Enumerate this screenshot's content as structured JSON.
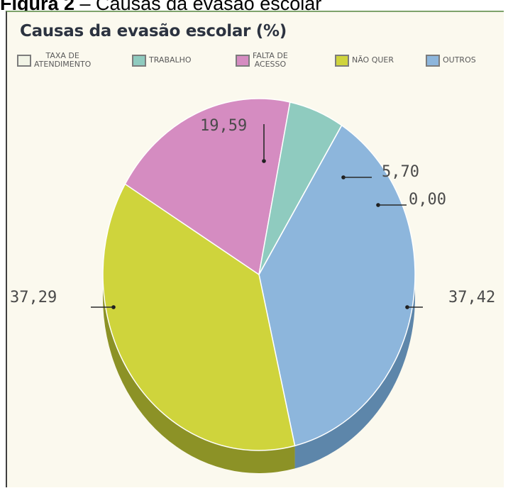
{
  "figure_caption": {
    "prefix": "Figura 2",
    "text": " – Causas da evasão escolar"
  },
  "chart_data": {
    "type": "pie",
    "title": "Causas da evasão escolar (%)",
    "legend_position": "top",
    "legend": [
      {
        "label_lines": [
          "TAXA DE",
          "ATENDIMENTO"
        ],
        "color": "#f1f4e6"
      },
      {
        "label_lines": [
          "TRABALHO"
        ],
        "color": "#8fcbbf"
      },
      {
        "label_lines": [
          "FALTA DE",
          "ACESSO"
        ],
        "color": "#d58cc1"
      },
      {
        "label_lines": [
          "NÃO QUER"
        ],
        "color": "#cfd43c"
      },
      {
        "label_lines": [
          "OUTROS"
        ],
        "color": "#8db6dc"
      }
    ],
    "slices": [
      {
        "name": "OUTROS",
        "value": 37.42,
        "label": "37,42",
        "color": "#8db6dc",
        "side": "#5d86aa"
      },
      {
        "name": "NÃO QUER",
        "value": 37.29,
        "label": "37,29",
        "color": "#cfd43c",
        "side": "#8c9226"
      },
      {
        "name": "FALTA DE ACESSO",
        "value": 19.59,
        "label": "19,59",
        "color": "#d58cc1",
        "side": "#9b5f8a"
      },
      {
        "name": "TRABALHO",
        "value": 5.7,
        "label": "5,70",
        "color": "#8fcbbf",
        "side": "#5f9a8f"
      },
      {
        "name": "TAXA DE ATENDIMENTO",
        "value": 0.0,
        "label": "0,00",
        "color": "#f1f4e6",
        "side": "#b9bcae"
      }
    ]
  }
}
